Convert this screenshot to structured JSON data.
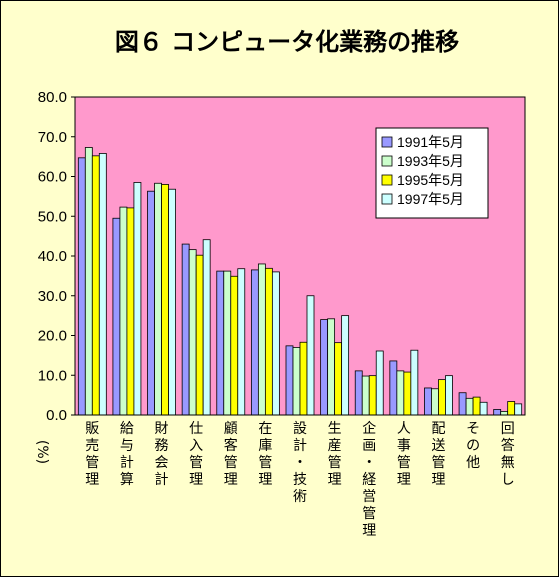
{
  "chart_data": {
    "type": "bar",
    "title": "図６ コンピュータ化業務の推移",
    "ylabel": "(%)",
    "ylim": [
      0,
      80
    ],
    "yticks": [
      "80.0",
      "70.0",
      "60.0",
      "50.0",
      "40.0",
      "30.0",
      "20.0",
      "10.0",
      "0.0"
    ],
    "grid": false,
    "legend_position": "top-right",
    "categories": [
      "販売管理",
      "給与計算",
      "財務会計",
      "仕入管理",
      "顧客管理",
      "在庫管理",
      "設計・技術",
      "生産管理",
      "企画・経営管理",
      "人事管理",
      "配送管理",
      "その他",
      "回答無し"
    ],
    "series": [
      {
        "name": "1991年5月",
        "color": "#9999ff",
        "values": [
          64.7,
          49.5,
          56.3,
          43.0,
          36.2,
          36.5,
          17.4,
          24.0,
          11.1,
          13.6,
          6.8,
          5.6,
          1.4
        ]
      },
      {
        "name": "1993年5月",
        "color": "#ccffcc",
        "values": [
          67.3,
          52.3,
          58.3,
          41.6,
          36.2,
          38.0,
          17.0,
          24.2,
          9.8,
          11.1,
          6.6,
          4.2,
          0.9
        ]
      },
      {
        "name": "1995年5月",
        "color": "#ffff00",
        "values": [
          65.2,
          52.1,
          58.0,
          40.2,
          34.9,
          36.9,
          18.3,
          18.2,
          9.9,
          10.8,
          8.9,
          4.5,
          3.4
        ]
      },
      {
        "name": "1997年5月",
        "color": "#ccffff",
        "values": [
          65.8,
          58.5,
          56.8,
          44.1,
          36.8,
          36.0,
          30.0,
          25.0,
          16.1,
          16.3,
          9.9,
          3.2,
          2.8
        ]
      }
    ],
    "plot_background": "#ff99cc",
    "page_background": "#ffffcc"
  }
}
